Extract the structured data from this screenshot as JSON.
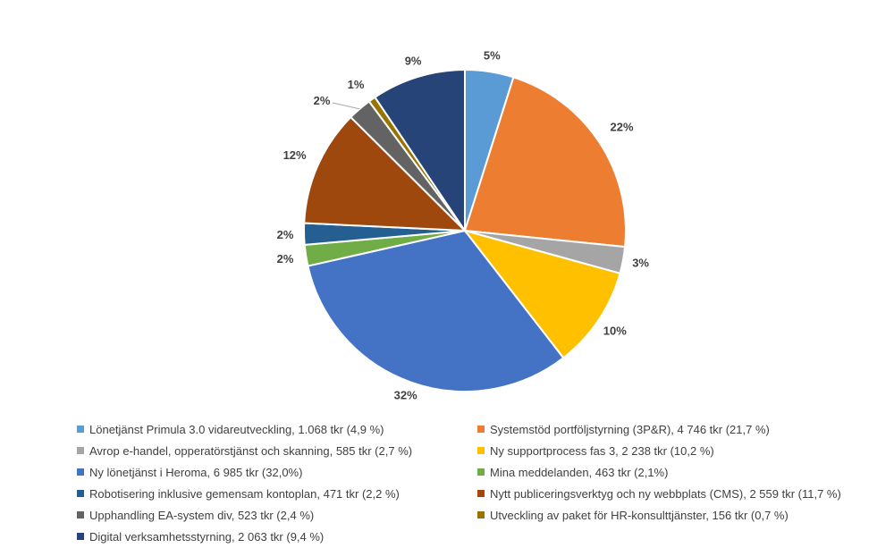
{
  "chart_data": {
    "type": "pie",
    "title": "",
    "legend_position": "bottom",
    "slices": [
      {
        "label": "Lönetjänst Primula 3.0 vidareutveckling, 1.068 tkr (4,9 %)",
        "value": 1068,
        "pct_label": "5%",
        "color": "#5B9BD5"
      },
      {
        "label": "Systemstöd portföljstyrning (3P&R), 4 746 tkr (21,7 %)",
        "value": 4746,
        "pct_label": "22%",
        "color": "#ED7D31"
      },
      {
        "label": "Avrop e-handel, opperatörstjänst och skanning, 585 tkr (2,7 %)",
        "value": 585,
        "pct_label": "3%",
        "color": "#A5A5A5"
      },
      {
        "label": "Ny supportprocess fas 3, 2 238 tkr (10,2 %)",
        "value": 2238,
        "pct_label": "10%",
        "color": "#FFC000"
      },
      {
        "label": "Ny lönetjänst i Heroma, 6 985 tkr (32,0%)",
        "value": 6985,
        "pct_label": "32%",
        "color": "#4472C4"
      },
      {
        "label": "Mina meddelanden, 463 tkr (2,1%)",
        "value": 463,
        "pct_label": "2%",
        "color": "#70AD47"
      },
      {
        "label": "Robotisering inklusive gemensam kontoplan, 471 tkr (2,2 %)",
        "value": 471,
        "pct_label": "2%",
        "color": "#255E91"
      },
      {
        "label": "Nytt publiceringsverktyg och ny webbplats (CMS), 2 559 tkr (11,7 %)",
        "value": 2559,
        "pct_label": "12%",
        "color": "#9E480E"
      },
      {
        "label": "Upphandling EA-system div, 523 tkr (2,4 %)",
        "value": 523,
        "pct_label": "2%",
        "color": "#636363"
      },
      {
        "label": "Utveckling av paket för HR-konsulttjänster, 156 tkr (0,7 %)",
        "value": 156,
        "pct_label": "1%",
        "color": "#997300"
      },
      {
        "label": "Digital verksamhetsstyrning, 2 063 tkr (9,4 %)",
        "value": 2063,
        "pct_label": "9%",
        "color": "#264478"
      }
    ]
  }
}
